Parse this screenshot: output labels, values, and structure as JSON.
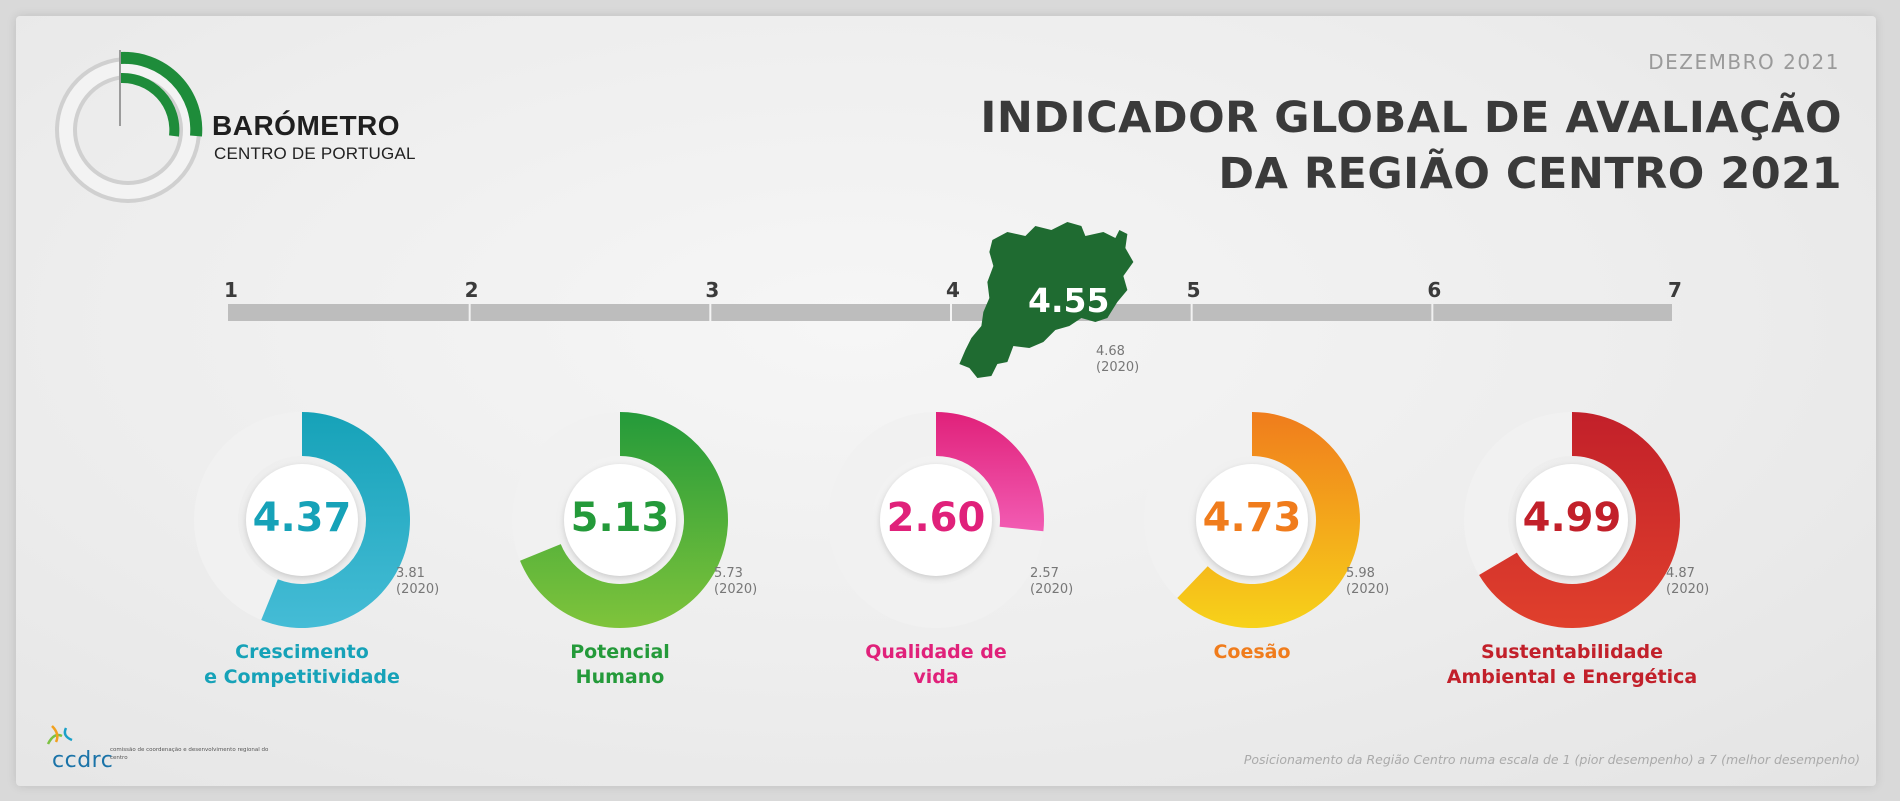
{
  "brand": {
    "title": "BARÓMETRO",
    "subtitle": "CENTRO DE PORTUGAL"
  },
  "header": {
    "date": "DEZEMBRO 2021",
    "title_line1": "INDICADOR GLOBAL DE AVALIAÇÃO",
    "title_line2": "DA REGIÃO CENTRO 2021"
  },
  "scale": {
    "ticks": [
      "1",
      "2",
      "3",
      "4",
      "5",
      "6",
      "7"
    ],
    "min": 1,
    "max": 7,
    "value": 4.55,
    "value_label": "4.55",
    "previous_value": "4.68",
    "previous_year": "(2020)",
    "marker_color": "#1f6b31",
    "bar_color": "#bdbdbd"
  },
  "indicators": [
    {
      "value": 4.37,
      "value_label": "4.37",
      "previous": "3.81",
      "previous_year": "(2020)",
      "label_line1": "Crescimento",
      "label_line2": "e Competitividade",
      "color": "#16a2b8",
      "color_light": "#45bcd6"
    },
    {
      "value": 5.13,
      "value_label": "5.13",
      "previous": "5.73",
      "previous_year": "(2020)",
      "label_line1": "Potencial",
      "label_line2": "Humano",
      "color": "#249a3a",
      "color_light": "#7fc43b"
    },
    {
      "value": 2.6,
      "value_label": "2.60",
      "previous": "2.57",
      "previous_year": "(2020)",
      "label_line1": "Qualidade de",
      "label_line2": "vida",
      "color": "#e0217a",
      "color_light": "#f25cb3"
    },
    {
      "value": 4.73,
      "value_label": "4.73",
      "previous": "5.98",
      "previous_year": "(2020)",
      "label_line1": "Coesão",
      "label_line2": "",
      "color": "#f07c1c",
      "color_light": "#f7d21a"
    },
    {
      "value": 4.99,
      "value_label": "4.99",
      "previous": "4.87",
      "previous_year": "(2020)",
      "label_line1": "Sustentabilidade",
      "label_line2": "Ambiental e Energética",
      "color": "#c2202a",
      "color_light": "#e0402c"
    }
  ],
  "footer": {
    "org_logo": "ccdrc",
    "org_desc": "comissão de coordenação e desenvolvimento regional do centro",
    "note": "Posicionamento da Região Centro numa escala de 1 (pior desempenho) a 7 (melhor desempenho)"
  }
}
